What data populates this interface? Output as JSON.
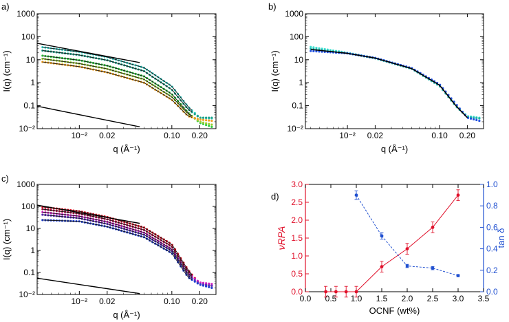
{
  "chart_data": [
    {
      "panel": "a)",
      "type": "line",
      "xscale": "log",
      "yscale": "log",
      "xlabel": "q (Å⁻¹)",
      "ylabel": "I(q) (cm⁻¹)",
      "xlim": [
        0.0035,
        0.3
      ],
      "ylim": [
        0.01,
        1000
      ],
      "xticks": [
        0.01,
        0.02,
        0.1,
        0.2
      ],
      "xticklabels": [
        "10⁻²",
        "0.02",
        "0.10",
        "0.20"
      ],
      "yticks": [
        0.01,
        0.1,
        1,
        10,
        100,
        1000
      ],
      "yticklabels": [
        "10⁻²",
        "0.1",
        "1",
        "10",
        "100",
        "1000"
      ],
      "slope_lines": [
        {
          "name": "upper guide",
          "x": [
            0.0035,
            0.045
          ],
          "y": [
            52,
            7.5
          ],
          "color": "#000000"
        },
        {
          "name": "lower guide",
          "x": [
            0.0035,
            0.045
          ],
          "y": [
            0.095,
            0.012
          ],
          "color": "#000000"
        }
      ],
      "series": [
        {
          "name": "cyan",
          "color": "#35d0c8",
          "x": [
            0.004,
            0.01,
            0.02,
            0.05,
            0.1,
            0.15,
            0.2,
            0.27
          ],
          "y": [
            35,
            22,
            13,
            4.5,
            0.7,
            0.09,
            0.03,
            0.028
          ]
        },
        {
          "name": "teal",
          "color": "#1ea38a",
          "x": [
            0.004,
            0.01,
            0.02,
            0.05,
            0.1,
            0.15,
            0.2,
            0.27
          ],
          "y": [
            25,
            16,
            9.5,
            3.2,
            0.5,
            0.07,
            0.03,
            0.03
          ]
        },
        {
          "name": "green",
          "color": "#2ecc40",
          "x": [
            0.004,
            0.01,
            0.02,
            0.05,
            0.1,
            0.15,
            0.2,
            0.27
          ],
          "y": [
            15,
            9.5,
            5.5,
            1.9,
            0.32,
            0.05,
            0.018,
            0.012
          ]
        },
        {
          "name": "yellow-green",
          "color": "#9acd32",
          "x": [
            0.004,
            0.01,
            0.02,
            0.05,
            0.1,
            0.15,
            0.2,
            0.27
          ],
          "y": [
            11,
            6.8,
            4.0,
            1.4,
            0.24,
            0.045,
            0.02,
            0.015
          ]
        },
        {
          "name": "orange",
          "color": "#f0a020",
          "x": [
            0.004,
            0.01,
            0.02,
            0.05,
            0.1,
            0.15,
            0.2,
            0.27
          ],
          "y": [
            8,
            5,
            2.8,
            1.0,
            0.18,
            0.035,
            0.025,
            0.022
          ]
        }
      ]
    },
    {
      "panel": "b)",
      "type": "line",
      "xscale": "log",
      "yscale": "log",
      "xlabel": "q (Å⁻¹)",
      "ylabel": "I(q) (cm⁻¹)",
      "xlim": [
        0.0035,
        0.3
      ],
      "ylim": [
        0.01,
        1000
      ],
      "xticks": [
        0.01,
        0.02,
        0.1,
        0.2
      ],
      "xticklabels": [
        "10⁻²",
        "0.02",
        "0.10",
        "0.20"
      ],
      "yticks": [
        0.01,
        0.1,
        1,
        10,
        100,
        1000
      ],
      "yticklabels": [
        "10⁻²",
        "0.1",
        "1",
        "10",
        "100",
        "1000"
      ],
      "series": [
        {
          "name": "cyan",
          "color": "#40e0d0",
          "x": [
            0.004,
            0.01,
            0.02,
            0.05,
            0.1,
            0.15,
            0.2,
            0.27
          ],
          "y": [
            36,
            20,
            12,
            4.2,
            0.75,
            0.1,
            0.035,
            0.03
          ]
        },
        {
          "name": "teal",
          "color": "#20b2aa",
          "x": [
            0.004,
            0.01,
            0.02,
            0.05,
            0.1,
            0.15,
            0.2,
            0.27
          ],
          "y": [
            30,
            19,
            11.5,
            4.0,
            0.72,
            0.095,
            0.032,
            0.028
          ]
        },
        {
          "name": "blue",
          "color": "#2050e0",
          "x": [
            0.004,
            0.01,
            0.02,
            0.05,
            0.1,
            0.15,
            0.2,
            0.27
          ],
          "y": [
            24,
            19,
            12,
            4.3,
            0.85,
            0.12,
            0.03,
            0.022
          ]
        },
        {
          "name": "fit",
          "color": "#000000",
          "x": [
            0.004,
            0.01,
            0.02,
            0.05,
            0.1,
            0.15,
            0.2
          ],
          "y": [
            28,
            19,
            11.8,
            4.1,
            0.78,
            0.1,
            0.03
          ]
        }
      ]
    },
    {
      "panel": "c)",
      "type": "line",
      "xscale": "log",
      "yscale": "log",
      "xlabel": "q (Å⁻¹)",
      "ylabel": "I(q) (cm⁻¹)",
      "xlim": [
        0.0035,
        0.3
      ],
      "ylim": [
        0.01,
        1000
      ],
      "xticks": [
        0.01,
        0.02,
        0.1,
        0.2
      ],
      "xticklabels": [
        "10⁻²",
        "0.02",
        "0.10",
        "0.20"
      ],
      "yticks": [
        0.01,
        0.1,
        1,
        10,
        100,
        1000
      ],
      "yticklabels": [
        "10⁻²",
        "0.1",
        "1",
        "10",
        "100",
        "1000"
      ],
      "slope_lines": [
        {
          "name": "upper guide",
          "x": [
            0.0035,
            0.045
          ],
          "y": [
            115,
            17
          ],
          "color": "#000000"
        },
        {
          "name": "lower guide",
          "x": [
            0.0035,
            0.045
          ],
          "y": [
            0.055,
            0.011
          ],
          "color": "#000000"
        }
      ],
      "series": [
        {
          "name": "red",
          "color": "#e01020",
          "x": [
            0.004,
            0.01,
            0.02,
            0.05,
            0.1,
            0.15,
            0.2,
            0.27
          ],
          "y": [
            95,
            60,
            33,
            11,
            1.9,
            0.13,
            0.03,
            0.025
          ]
        },
        {
          "name": "crimson",
          "color": "#b01040",
          "x": [
            0.004,
            0.01,
            0.02,
            0.05,
            0.1,
            0.15,
            0.2,
            0.27
          ],
          "y": [
            75,
            47,
            26,
            8.5,
            1.5,
            0.11,
            0.03,
            0.025
          ]
        },
        {
          "name": "magenta",
          "color": "#d020c0",
          "x": [
            0.004,
            0.01,
            0.02,
            0.05,
            0.1,
            0.15,
            0.2,
            0.27
          ],
          "y": [
            55,
            36,
            20,
            6.5,
            1.15,
            0.09,
            0.035,
            0.03
          ]
        },
        {
          "name": "purple",
          "color": "#6030c0",
          "x": [
            0.004,
            0.01,
            0.02,
            0.05,
            0.1,
            0.15,
            0.2,
            0.27
          ],
          "y": [
            42,
            29,
            16,
            5.2,
            0.95,
            0.075,
            0.03,
            0.025
          ]
        },
        {
          "name": "blue",
          "color": "#2040d0",
          "x": [
            0.004,
            0.01,
            0.02,
            0.05,
            0.1,
            0.15,
            0.2,
            0.27
          ],
          "y": [
            24,
            21,
            12,
            4.0,
            0.75,
            0.06,
            0.028,
            0.02
          ]
        }
      ]
    },
    {
      "panel": "d)",
      "type": "line",
      "xlabel": "OCNF (wt%)",
      "ylabel_left": "νRPA",
      "ylabel_right": "tan δ",
      "xlim": [
        0.0,
        3.5
      ],
      "ylim_left": [
        0.0,
        3.0
      ],
      "ylim_right": [
        0.0,
        1.0
      ],
      "xticks": [
        0.0,
        0.5,
        1.0,
        1.5,
        2.0,
        2.5,
        3.0,
        3.5
      ],
      "xticklabels": [
        "0.0",
        "0.5",
        "1.0",
        "1.5",
        "2.0",
        "2.5",
        "3.0",
        "3.5"
      ],
      "yticks_left": [
        0.0,
        0.5,
        1.0,
        1.5,
        2.0,
        2.5,
        3.0
      ],
      "yticklabels_left": [
        "0.0",
        "0.5",
        "1.0",
        "1.5",
        "2.0",
        "2.5",
        "3.0"
      ],
      "yticks_right": [
        0.0,
        0.2,
        0.4,
        0.6,
        0.8,
        1.0
      ],
      "yticklabels_right": [
        "0.0",
        "0.2",
        "0.4",
        "0.6",
        "0.8",
        "1.0"
      ],
      "series": [
        {
          "name": "νRPA",
          "axis": "left",
          "color": "#e0102a",
          "line": "solid",
          "x": [
            0.4,
            0.6,
            0.8,
            1.0,
            1.5,
            2.0,
            2.5,
            3.0
          ],
          "y": [
            0.0,
            0.0,
            0.0,
            0.0,
            0.7,
            1.2,
            1.8,
            2.7
          ],
          "err": [
            0.15,
            0.15,
            0.15,
            0.15,
            0.15,
            0.15,
            0.15,
            0.15
          ]
        },
        {
          "name": "tan δ",
          "axis": "right",
          "color": "#2050d0",
          "line": "dashed",
          "x": [
            1.0,
            1.5,
            2.0,
            2.5,
            3.0
          ],
          "y": [
            0.9,
            0.52,
            0.24,
            0.22,
            0.15
          ],
          "err": [
            0.04,
            0.03,
            0.015,
            0.015,
            0.01
          ]
        }
      ]
    }
  ]
}
